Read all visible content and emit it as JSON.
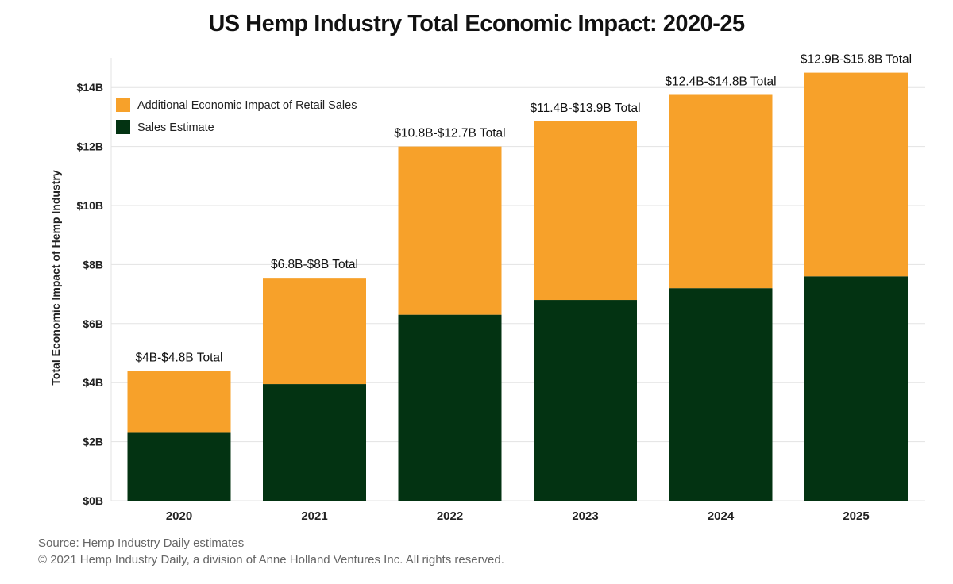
{
  "title": "US Hemp Industry Total Economic Impact: 2020-25",
  "footer": {
    "source": "Source: Hemp Industry Daily estimates",
    "copyright": "© 2021 Hemp Industry Daily, a division of Anne Holland Ventures Inc. All rights reserved."
  },
  "colors": {
    "retail_impact": "#F7A12A",
    "sales_estimate": "#033312",
    "grid": "#e3e3e3"
  },
  "chart_data": {
    "type": "bar",
    "stacked": true,
    "title": "US Hemp Industry Total Economic Impact: 2020-25",
    "xlabel": "",
    "ylabel": "Total Economic Impact of Hemp Industry",
    "ylim": [
      0,
      15
    ],
    "y_ticks": [
      0,
      2,
      4,
      6,
      8,
      10,
      12,
      14
    ],
    "y_tick_labels": [
      "$0B",
      "$2B",
      "$4B",
      "$6B",
      "$8B",
      "$10B",
      "$12B",
      "$14B"
    ],
    "grid": true,
    "legend_position": "top-left",
    "categories": [
      "2020",
      "2021",
      "2022",
      "2023",
      "2024",
      "2025"
    ],
    "series": [
      {
        "name": "Sales Estimate",
        "values": [
          2.3,
          3.95,
          6.3,
          6.8,
          7.2,
          7.6
        ]
      },
      {
        "name": "Additional Economic Impact of Retail Sales",
        "values": [
          2.1,
          3.6,
          5.7,
          6.05,
          6.55,
          6.9
        ]
      }
    ],
    "legend_order": [
      "Additional Economic Impact of Retail Sales",
      "Sales Estimate"
    ],
    "total_labels": [
      "$4B-$4.8B Total",
      "$6.8B-$8B Total",
      "$10.8B-$12.7B Total",
      "$11.4B-$13.9B Total",
      "$12.4B-$14.8B Total",
      "$12.9B-$15.8B Total"
    ]
  }
}
